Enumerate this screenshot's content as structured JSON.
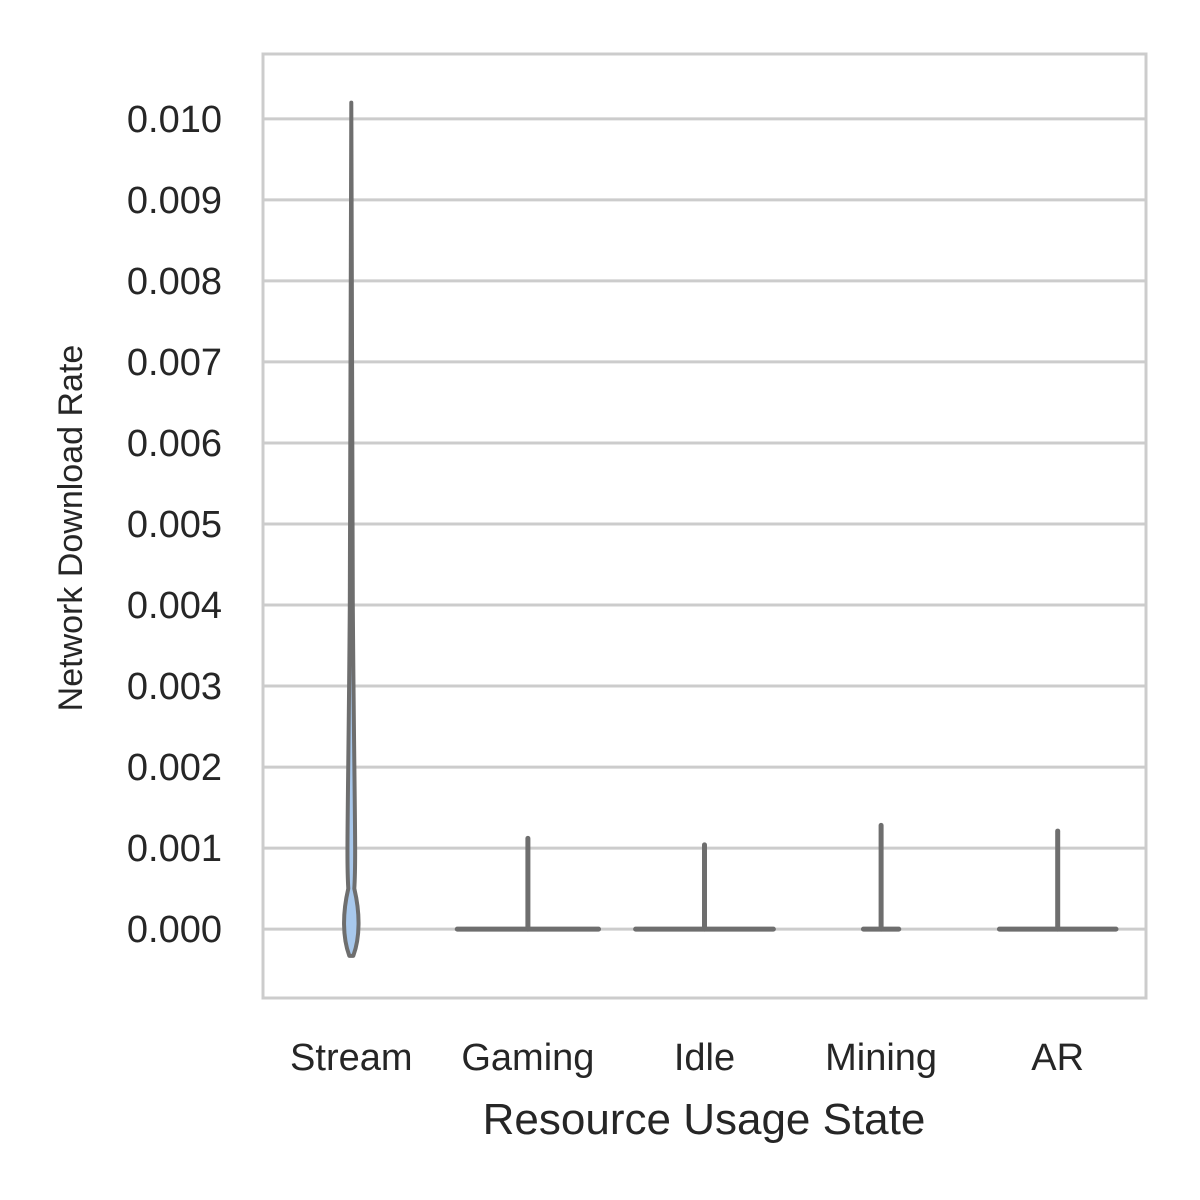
{
  "chart_data": {
    "type": "violin",
    "title": "",
    "xlabel": "Resource Usage State",
    "ylabel": "Network Download Rate",
    "categories": [
      "Stream",
      "Gaming",
      "Idle",
      "Mining",
      "AR"
    ],
    "ylim": [
      -0.00085,
      0.0108
    ],
    "yticks": [
      0.0,
      0.001,
      0.002,
      0.003,
      0.004,
      0.005,
      0.006,
      0.007,
      0.008,
      0.009,
      0.01
    ],
    "ytick_labels": [
      "0.000",
      "0.001",
      "0.002",
      "0.003",
      "0.004",
      "0.005",
      "0.006",
      "0.007",
      "0.008",
      "0.009",
      "0.010"
    ],
    "grid": "horizontal",
    "legend": "none",
    "series": [
      {
        "category": "Stream",
        "min": -0.00033,
        "max": 0.0102,
        "median": 0.0,
        "density_halfwidth": 0.1
      },
      {
        "category": "Gaming",
        "min": 0.0,
        "max": 0.00112,
        "median": 0.0,
        "density_halfwidth": 0.8
      },
      {
        "category": "Idle",
        "min": 0.0,
        "max": 0.00104,
        "median": 0.0,
        "density_halfwidth": 0.78
      },
      {
        "category": "Mining",
        "min": 0.0,
        "max": 0.00128,
        "median": 0.0,
        "density_halfwidth": 0.2
      },
      {
        "category": "AR",
        "min": 0.0,
        "max": 0.00121,
        "median": 0.0,
        "density_halfwidth": 0.66
      }
    ],
    "colors": {
      "violin_line": "#6e6e6e",
      "violin_fill": "#a8c8ec",
      "grid": "#cccccc",
      "spine": "#cccccc",
      "text": "#262626"
    }
  }
}
